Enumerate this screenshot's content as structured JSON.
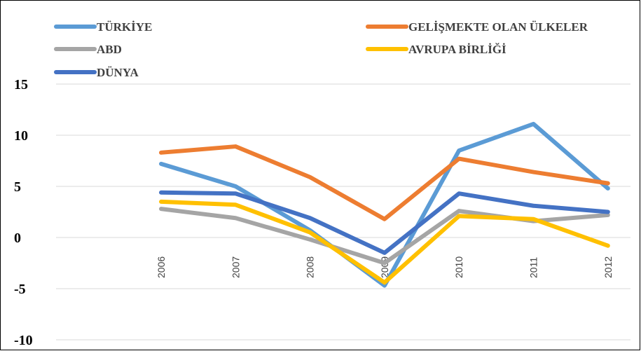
{
  "chart_data": {
    "type": "line",
    "categories": [
      "2006",
      "2007",
      "2008",
      "2009",
      "2010",
      "2011",
      "2012"
    ],
    "series": [
      {
        "name": "TÜRKİYE",
        "color": "#5b9bd5",
        "values": [
          7.2,
          5.0,
          0.7,
          -4.7,
          8.5,
          11.1,
          4.8
        ]
      },
      {
        "name": "GELİŞMEKTE OLAN ÜLKELER",
        "color": "#ed7d31",
        "values": [
          8.3,
          8.9,
          5.9,
          1.8,
          7.7,
          6.4,
          5.3
        ]
      },
      {
        "name": "ABD",
        "color": "#a5a5a5",
        "values": [
          2.8,
          1.9,
          -0.2,
          -2.5,
          2.6,
          1.6,
          2.2
        ]
      },
      {
        "name": "AVRUPA BİRLİĞİ",
        "color": "#ffc000",
        "values": [
          3.5,
          3.2,
          0.5,
          -4.4,
          2.1,
          1.8,
          -0.8
        ]
      },
      {
        "name": "DÜNYA",
        "color": "#4472c4",
        "values": [
          4.4,
          4.3,
          1.9,
          -1.5,
          4.3,
          3.1,
          2.5
        ]
      }
    ],
    "ylim": [
      -10,
      15
    ],
    "yticks": [
      -10,
      -5,
      0,
      5,
      10,
      15
    ],
    "grid": true
  }
}
